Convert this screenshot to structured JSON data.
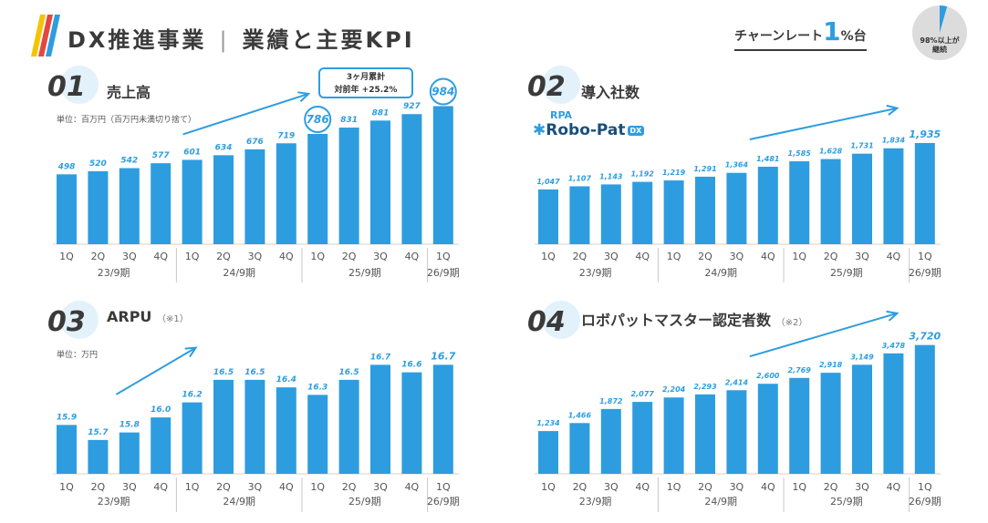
{
  "header": {
    "title_left": "DX推進事業",
    "title_sep": "|",
    "title_right": "業績と主要KPI",
    "churn_prefix": "チャーンレート",
    "churn_value": "1",
    "churn_suffix": "%台",
    "pie_line1": "98%以上が",
    "pie_line2": "継続",
    "pie_share": 0.98
  },
  "colors": {
    "bar": "#2e9ddf",
    "accent": "#2e9ddf",
    "text": "#3a3a3a",
    "divider": "#c8c8c8"
  },
  "panels": {
    "p1": {
      "num": "01",
      "title": "売上高",
      "note": "",
      "unit": "単位：百万円（百万円未満切り捨て）"
    },
    "p2": {
      "num": "02",
      "title": "導入社数",
      "note": "",
      "unit": "",
      "product_prefix": "RPA",
      "product_name": "Robo-Pat",
      "product_badge": "DX"
    },
    "p3": {
      "num": "03",
      "title": "ARPU",
      "note": "（※1）",
      "unit": "単位：万円"
    },
    "p4": {
      "num": "04",
      "title": "ロボパットマスター認定者数",
      "note": "（※2）",
      "unit": ""
    }
  },
  "callout": {
    "line1": "3ヶ月累計",
    "line2": "対前年 +25.2%"
  },
  "chart_data": [
    {
      "type": "bar",
      "title": "売上高",
      "categories": [
        "1Q",
        "2Q",
        "3Q",
        "4Q",
        "1Q",
        "2Q",
        "3Q",
        "4Q",
        "1Q",
        "2Q",
        "3Q",
        "4Q",
        "1Q"
      ],
      "periods": [
        {
          "label": "23/9期",
          "count": 4
        },
        {
          "label": "24/9期",
          "count": 4
        },
        {
          "label": "25/9期",
          "count": 4
        },
        {
          "label": "26/9期",
          "count": 1
        }
      ],
      "values": [
        498,
        520,
        542,
        577,
        601,
        634,
        676,
        719,
        786,
        831,
        881,
        927,
        984
      ],
      "value_labels": [
        "498",
        "520",
        "542",
        "577",
        "601",
        "634",
        "676",
        "719",
        "786",
        "831",
        "881",
        "927",
        "984"
      ],
      "circled_indices": [
        8,
        12
      ],
      "ylim": [
        0,
        1000
      ]
    },
    {
      "type": "bar",
      "title": "導入社数",
      "categories": [
        "1Q",
        "2Q",
        "3Q",
        "4Q",
        "1Q",
        "2Q",
        "3Q",
        "4Q",
        "1Q",
        "2Q",
        "3Q",
        "4Q",
        "1Q"
      ],
      "periods": [
        {
          "label": "23/9期",
          "count": 4
        },
        {
          "label": "24/9期",
          "count": 4
        },
        {
          "label": "25/9期",
          "count": 4
        },
        {
          "label": "26/9期",
          "count": 1
        }
      ],
      "values": [
        1047,
        1107,
        1143,
        1192,
        1219,
        1291,
        1364,
        1481,
        1585,
        1628,
        1731,
        1834,
        1935
      ],
      "value_labels": [
        "1,047",
        "1,107",
        "1,143",
        "1,192",
        "1,219",
        "1,291",
        "1,364",
        "1,481",
        "1,585",
        "1,628",
        "1,731",
        "1,834",
        "1,935"
      ],
      "ylim": [
        0,
        2300
      ]
    },
    {
      "type": "bar",
      "title": "ARPU",
      "categories": [
        "1Q",
        "2Q",
        "3Q",
        "4Q",
        "1Q",
        "2Q",
        "3Q",
        "4Q",
        "1Q",
        "2Q",
        "3Q",
        "4Q",
        "1Q"
      ],
      "periods": [
        {
          "label": "23/9期",
          "count": 4
        },
        {
          "label": "24/9期",
          "count": 4
        },
        {
          "label": "25/9期",
          "count": 4
        },
        {
          "label": "26/9期",
          "count": 1
        }
      ],
      "values": [
        15.9,
        15.7,
        15.8,
        16.0,
        16.2,
        16.5,
        16.5,
        16.4,
        16.3,
        16.5,
        16.7,
        16.6,
        16.7
      ],
      "value_labels": [
        "15.9",
        "15.7",
        "15.8",
        "16.0",
        "16.2",
        "16.5",
        "16.5",
        "16.4",
        "16.3",
        "16.5",
        "16.7",
        "16.6",
        "16.7"
      ],
      "ylim": [
        15.25,
        16.85
      ]
    },
    {
      "type": "bar",
      "title": "ロボパットマスター認定者数",
      "categories": [
        "1Q",
        "2Q",
        "3Q",
        "4Q",
        "1Q",
        "2Q",
        "3Q",
        "4Q",
        "1Q",
        "2Q",
        "3Q",
        "4Q",
        "1Q"
      ],
      "periods": [
        {
          "label": "23/9期",
          "count": 4
        },
        {
          "label": "24/9期",
          "count": 4
        },
        {
          "label": "25/9期",
          "count": 4
        },
        {
          "label": "26/9期",
          "count": 1
        }
      ],
      "values": [
        1234,
        1466,
        1872,
        2077,
        2204,
        2293,
        2414,
        2600,
        2769,
        2918,
        3149,
        3478,
        3720
      ],
      "value_labels": [
        "1,234",
        "1,466",
        "1,872",
        "2,077",
        "2,204",
        "2,293",
        "2,414",
        "2,600",
        "2,769",
        "2,918",
        "3,149",
        "3,478",
        "3,720"
      ],
      "ylim": [
        0,
        4000
      ]
    }
  ]
}
